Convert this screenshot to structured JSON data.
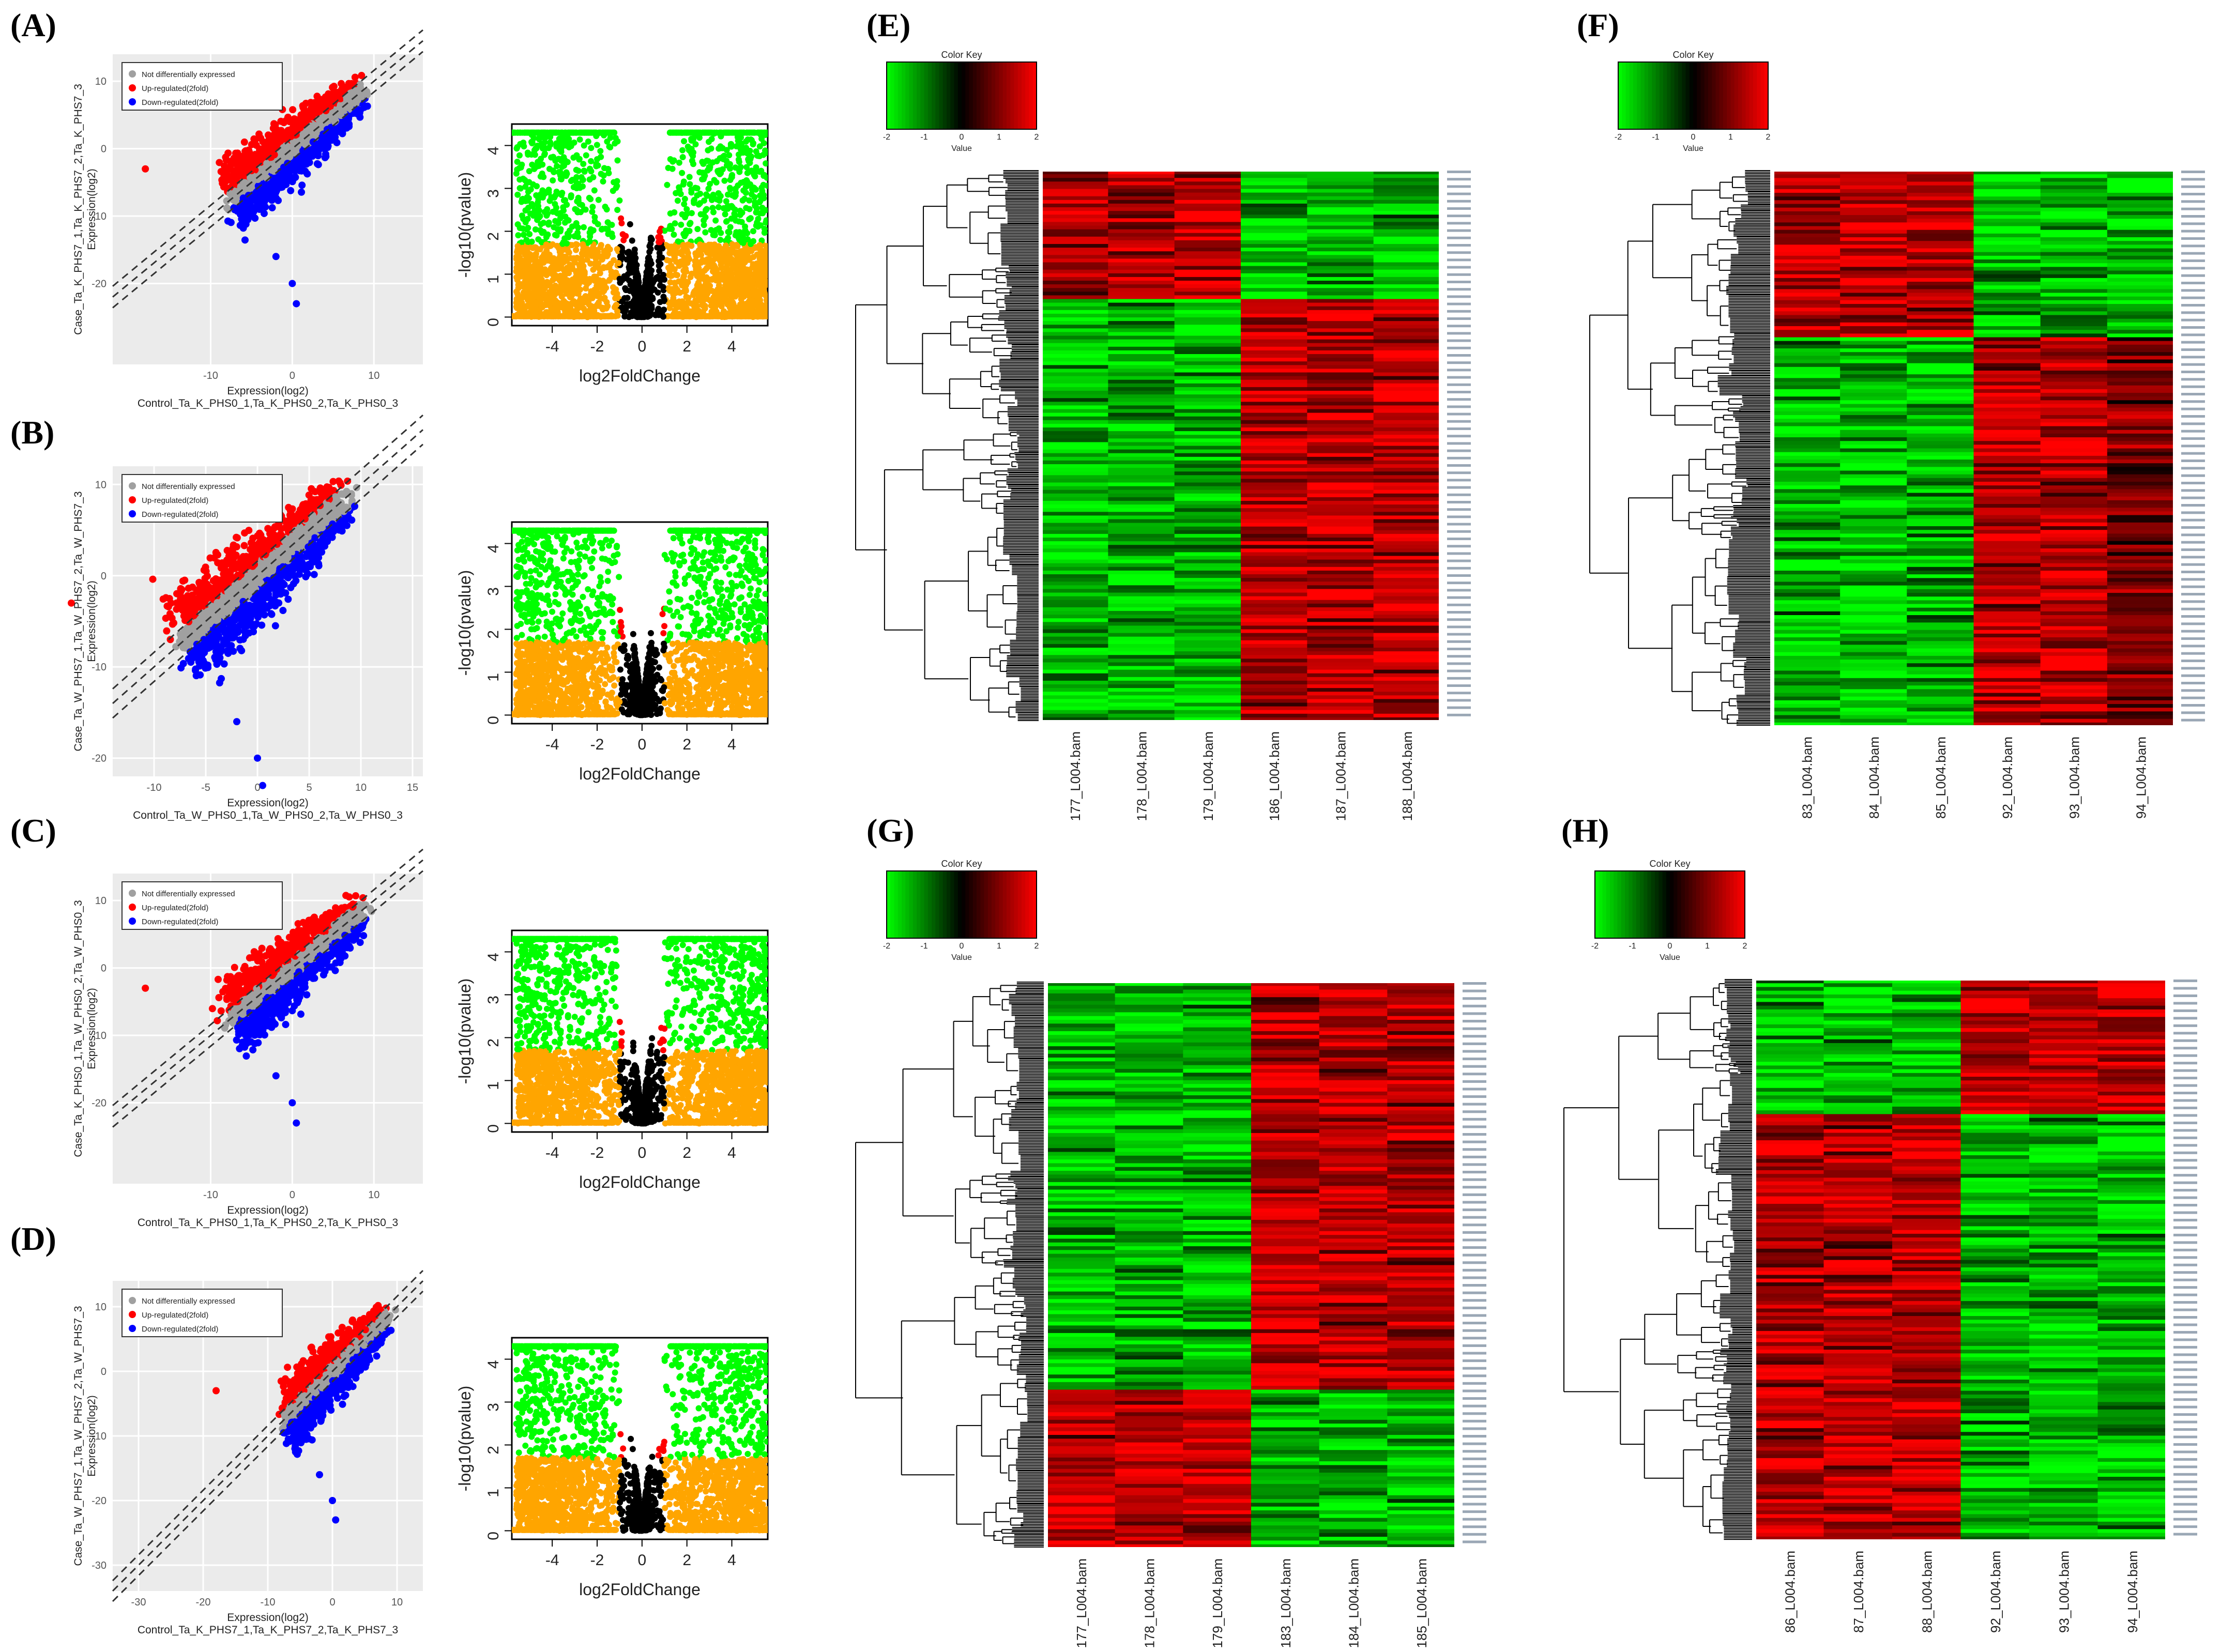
{
  "panels": {
    "A": {
      "label": "(A)",
      "scatter": {
        "type": "scatter",
        "ylabel_lines": [
          "Case_Ta_K_PHS7_1,Ta_K_PHS7_2,Ta_K_PHS7_3",
          "Expression(log2)"
        ],
        "xlabel_lines": [
          "Expression(log2)",
          "Control_Ta_K_PHS0_1,Ta_K_PHS0_2,Ta_K_PHS0_3"
        ],
        "xticks": [
          -10,
          0,
          10
        ],
        "yticks": [
          10,
          0,
          -10,
          -20
        ],
        "xlim": [
          -22,
          16
        ],
        "ylim": [
          -32,
          14
        ],
        "legend": [
          "Not differentially expressed",
          "Up-regulated(2fold)",
          "Down-regulated(2fold)"
        ],
        "colors": {
          "ns": "#a0a0a0",
          "up": "#ff0000",
          "down": "#0000ff",
          "bg": "#ebebeb"
        }
      },
      "volcano": {
        "type": "scatter",
        "xlabel": "log2FoldChange",
        "ylabel": "-log10(pvalue)",
        "xticks": [
          -4,
          -2,
          0,
          2,
          4
        ],
        "yticks": [
          0,
          1,
          2,
          3,
          4
        ],
        "xlim": [
          -5.8,
          5.6
        ],
        "ylim": [
          -0.2,
          4.5
        ],
        "threshold_pvalue_log10": 1.7,
        "fc_threshold": 1,
        "cap": 4.3,
        "colors": {
          "sig": "#00ff00",
          "nonsig": "#ffa500",
          "low_fc": "#000000",
          "mid": "#ff0000"
        }
      }
    },
    "B": {
      "label": "(B)",
      "scatter": {
        "ylabel_lines": [
          "Case_Ta_W_PHS7_1,Ta_W_PHS7_2,Ta_W_PHS7_3",
          "Expression(log2)"
        ],
        "xlabel_lines": [
          "Expression(log2)",
          "Control_Ta_W_PHS0_1,Ta_W_PHS0_2,Ta_W_PHS0_3"
        ],
        "xticks": [
          -10,
          -5,
          0,
          5,
          10,
          15
        ],
        "yticks": [
          10,
          0,
          -10,
          -20
        ],
        "xlim": [
          -14,
          16
        ],
        "ylim": [
          -22,
          12
        ],
        "legend": [
          "Not differentially expressed",
          "Up-regulated(2fold)",
          "Down-regulated(2fold)"
        ]
      },
      "volcano": {
        "xlabel": "log2FoldChange",
        "ylabel": "-log10(pvalue)",
        "xticks": [
          -4,
          -2,
          0,
          2,
          4
        ],
        "yticks": [
          0,
          1,
          2,
          3,
          4
        ]
      }
    },
    "C": {
      "label": "(C)",
      "scatter": {
        "ylabel_lines": [
          "Case_Ta_K_PHS0_1,Ta_W_PHS0_2,Ta_W_PHS0_3",
          "Expression(log2)"
        ],
        "xlabel_lines": [
          "Expression(log2)",
          "Control_Ta_K_PHS0_1,Ta_K_PHS0_2,Ta_K_PHS0_3"
        ],
        "xticks": [
          -10,
          0,
          10
        ],
        "yticks": [
          10,
          0,
          -10,
          -20
        ],
        "xlim": [
          -22,
          16
        ],
        "ylim": [
          -32,
          14
        ],
        "legend": [
          "Not differentially expressed",
          "Up-regulated(2fold)",
          "Down-regulated(2fold)"
        ]
      },
      "volcano": {
        "xlabel": "log2FoldChange",
        "ylabel": "-log10(pvalue)",
        "xticks": [
          -4,
          -2,
          0,
          2,
          4
        ],
        "yticks": [
          0,
          1,
          2,
          3,
          4
        ]
      }
    },
    "D": {
      "label": "(D)",
      "scatter": {
        "ylabel_lines": [
          "Case_Ta_W_PHS7_1,Ta_W_PHS7_2,Ta_W_PHS7_3",
          "Expression(log2)"
        ],
        "xlabel_lines": [
          "Expression(log2)",
          "Control_Ta_K_PHS7_1,Ta_K_PHS7_2,Ta_K_PHS7_3"
        ],
        "xticks": [
          -30,
          -20,
          -10,
          0,
          10
        ],
        "yticks": [
          10,
          0,
          -10,
          -20,
          -30
        ],
        "xlim": [
          -34,
          14
        ],
        "ylim": [
          -34,
          14
        ],
        "legend": [
          "Not differentially expressed",
          "Up-regulated(2fold)",
          "Down-regulated(2fold)"
        ]
      },
      "volcano": {
        "xlabel": "log2FoldChange",
        "ylabel": "-log10(pvalue)",
        "xticks": [
          -4,
          -2,
          0,
          2,
          4
        ],
        "yticks": [
          0,
          1,
          2,
          3,
          4
        ]
      }
    },
    "E": {
      "label": "(E)",
      "heatmap": {
        "type": "heatmap",
        "color_key": {
          "title": "Color Key",
          "xlabel": "Value",
          "ticks": [
            -2,
            -1,
            0,
            1,
            2
          ]
        },
        "columns": [
          "177_L004.bam",
          "178_L004.bam",
          "179_L004.bam",
          "186_L004.bam",
          "187_L004.bam",
          "188_L004.bam"
        ],
        "blocks": [
          {
            "fraction": 0.23,
            "pattern": [
              1,
              1,
              1,
              -1,
              -1,
              -1
            ]
          },
          {
            "fraction": 0.77,
            "pattern": [
              -1,
              -1,
              -1,
              1,
              1,
              1
            ]
          }
        ]
      }
    },
    "F": {
      "label": "(F)",
      "heatmap": {
        "type": "heatmap",
        "color_key": {
          "title": "Color Key",
          "xlabel": "Value",
          "ticks": [
            -2,
            -1,
            0,
            1,
            2
          ]
        },
        "columns": [
          "83_L004.bam",
          "84_L004.bam",
          "85_L004.bam",
          "92_L004.bam",
          "93_L004.bam",
          "94_L004.bam"
        ],
        "blocks": [
          {
            "fraction": 0.3,
            "pattern": [
              1,
              1,
              1,
              -1,
              -1,
              -1
            ]
          },
          {
            "fraction": 0.7,
            "pattern": [
              -1,
              -1,
              -1,
              1,
              1,
              0.6
            ]
          }
        ]
      }
    },
    "G": {
      "label": "(G)",
      "heatmap": {
        "type": "heatmap",
        "color_key": {
          "title": "Color Key",
          "xlabel": "Value",
          "ticks": [
            -2,
            -1,
            0,
            1,
            2
          ]
        },
        "columns": [
          "177_L004.bam",
          "178_L004.bam",
          "179_L004.bam",
          "183_L004.bam",
          "184_L004.bam",
          "185_L004.bam"
        ],
        "blocks": [
          {
            "fraction": 0.72,
            "pattern": [
              -1,
              -1,
              -1,
              1,
              1,
              1
            ]
          },
          {
            "fraction": 0.28,
            "pattern": [
              1,
              1,
              1,
              -1,
              -1,
              -1
            ]
          }
        ]
      }
    },
    "H": {
      "label": "(H)",
      "heatmap": {
        "type": "heatmap",
        "color_key": {
          "title": "Color Key",
          "xlabel": "Value",
          "ticks": [
            -2,
            -1,
            0,
            1,
            2
          ]
        },
        "columns": [
          "86_L004.bam",
          "87_L004.bam",
          "88_L004.bam",
          "92_L004.bam",
          "93_L004.bam",
          "94_L004.bam"
        ],
        "blocks": [
          {
            "fraction": 0.24,
            "pattern": [
              -1,
              -1,
              -1,
              1,
              1,
              1
            ]
          },
          {
            "fraction": 0.76,
            "pattern": [
              1,
              1,
              1,
              -1,
              -1,
              -1
            ]
          }
        ]
      }
    }
  },
  "chart_data": [
    {
      "type": "scatter",
      "title": "(A) scatter",
      "xlabel": "Expression(log2)",
      "ylabel": "Expression(log2)",
      "series": [
        "Not differentially expressed",
        "Up-regulated(2fold)",
        "Down-regulated(2fold)"
      ]
    },
    {
      "type": "scatter",
      "title": "(A) volcano",
      "xlabel": "log2FoldChange",
      "ylabel": "-log10(pvalue)",
      "xlim": [
        -5.8,
        5.6
      ],
      "ylim": [
        -0.2,
        4.5
      ]
    },
    {
      "type": "heatmap",
      "title": "(E)",
      "columns": [
        "177_L004.bam",
        "178_L004.bam",
        "179_L004.bam",
        "186_L004.bam",
        "187_L004.bam",
        "188_L004.bam"
      ],
      "color_range": [
        -2,
        2
      ]
    },
    {
      "type": "heatmap",
      "title": "(F)",
      "columns": [
        "83_L004.bam",
        "84_L004.bam",
        "85_L004.bam",
        "92_L004.bam",
        "93_L004.bam",
        "94_L004.bam"
      ],
      "color_range": [
        -2,
        2
      ]
    },
    {
      "type": "heatmap",
      "title": "(G)",
      "columns": [
        "177_L004.bam",
        "178_L004.bam",
        "179_L004.bam",
        "183_L004.bam",
        "184_L004.bam",
        "185_L004.bam"
      ],
      "color_range": [
        -2,
        2
      ]
    },
    {
      "type": "heatmap",
      "title": "(H)",
      "columns": [
        "86_L004.bam",
        "87_L004.bam",
        "88_L004.bam",
        "92_L004.bam",
        "93_L004.bam",
        "94_L004.bam"
      ],
      "color_range": [
        -2,
        2
      ]
    }
  ]
}
